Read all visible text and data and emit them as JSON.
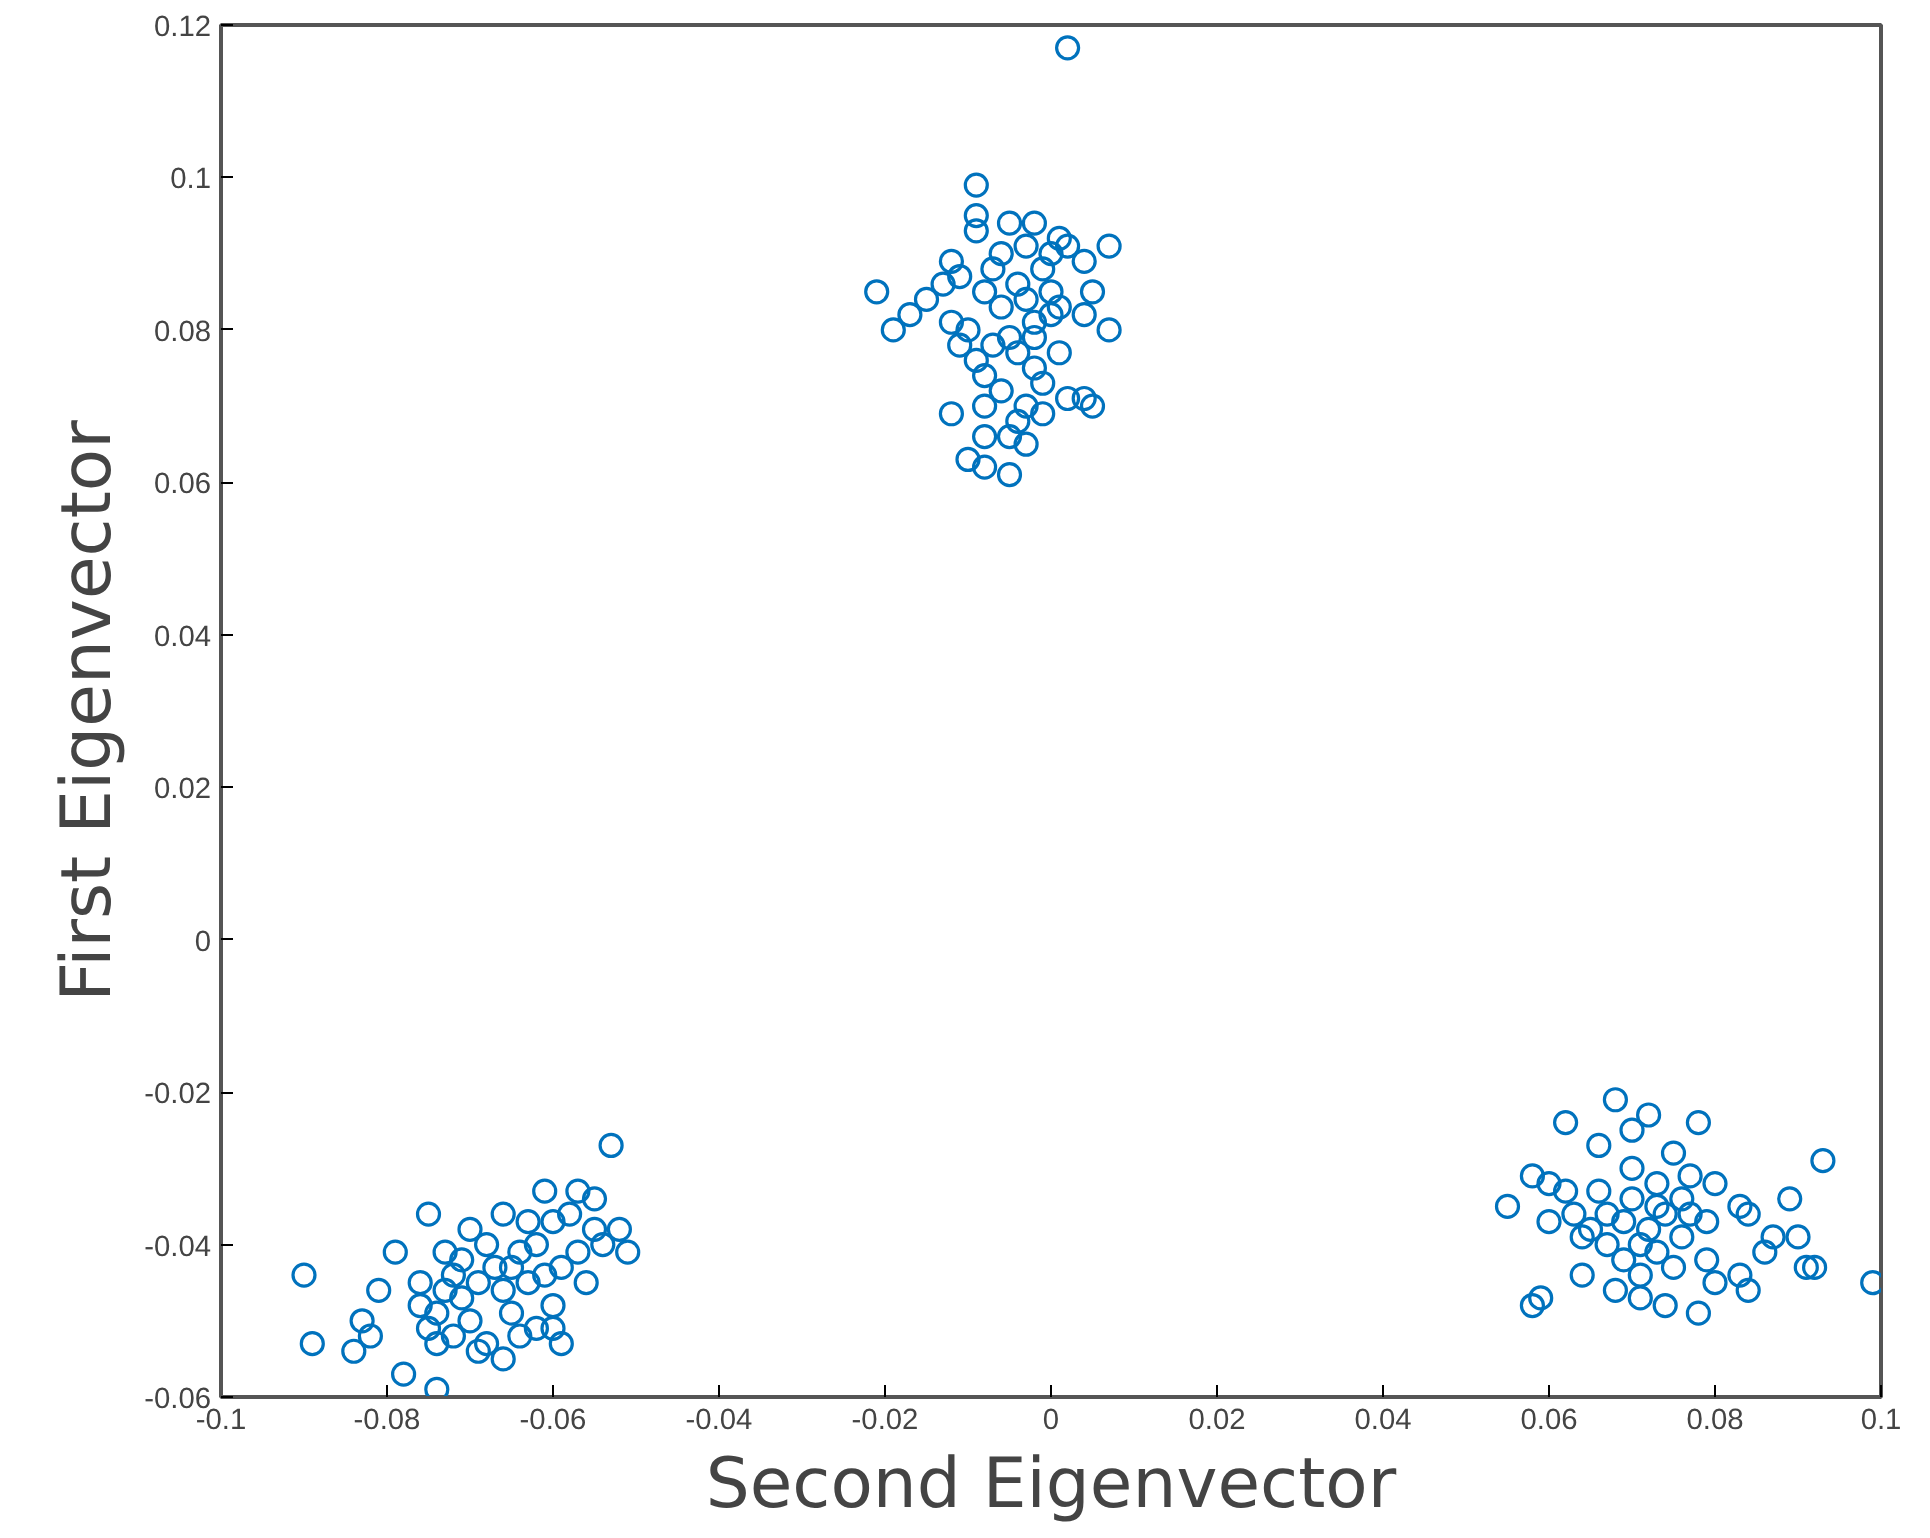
{
  "chart_data": {
    "type": "scatter",
    "xlabel": "Second Eigenvector",
    "ylabel": "First Eigenvector",
    "xlim": [
      -0.1,
      0.1
    ],
    "ylim": [
      -0.06,
      0.12
    ],
    "xticks": [
      -0.1,
      -0.08,
      -0.06,
      -0.04,
      -0.02,
      0,
      0.02,
      0.04,
      0.06,
      0.08,
      0.1
    ],
    "yticks": [
      -0.06,
      -0.04,
      -0.02,
      0,
      0.02,
      0.04,
      0.06,
      0.08,
      0.1,
      0.12
    ],
    "grid": false,
    "marker": "circle",
    "series": [
      {
        "color": "#0072bd",
        "x": [
          0.002,
          -0.009,
          -0.021,
          -0.019,
          -0.017,
          -0.015,
          -0.013,
          -0.012,
          -0.011,
          -0.009,
          -0.009,
          -0.005,
          -0.002,
          0.001,
          0.002,
          0.007,
          0.004,
          0.005,
          0.007,
          0.004,
          -0.007,
          -0.008,
          -0.006,
          -0.004,
          -0.003,
          -0.002,
          -0.001,
          0,
          0.001,
          -0.01,
          -0.011,
          -0.012,
          -0.009,
          -0.008,
          -0.007,
          -0.005,
          -0.004,
          -0.002,
          -0.001,
          0.001,
          0.002,
          0.004,
          0.005,
          -0.001,
          -0.003,
          -0.004,
          -0.005,
          -0.003,
          -0.008,
          -0.008,
          -0.012,
          -0.01,
          -0.008,
          -0.005,
          -0.006,
          -0.002,
          0,
          -0.006,
          -0.003,
          0,
          -0.09,
          -0.089,
          -0.084,
          -0.083,
          -0.082,
          -0.081,
          -0.079,
          -0.078,
          -0.074,
          -0.075,
          -0.076,
          -0.076,
          -0.075,
          -0.074,
          -0.073,
          -0.072,
          -0.071,
          -0.07,
          -0.069,
          -0.068,
          -0.067,
          -0.066,
          -0.065,
          -0.064,
          -0.063,
          -0.062,
          -0.061,
          -0.06,
          -0.06,
          -0.059,
          -0.061,
          -0.058,
          -0.057,
          -0.056,
          -0.055,
          -0.054,
          -0.053,
          -0.052,
          -0.051,
          -0.066,
          -0.07,
          -0.073,
          -0.068,
          -0.063,
          -0.059,
          -0.074,
          -0.071,
          -0.069,
          -0.064,
          -0.06,
          -0.055,
          -0.057,
          -0.072,
          -0.066,
          -0.062,
          -0.065,
          0.055,
          0.058,
          0.058,
          0.059,
          0.06,
          0.06,
          0.062,
          0.062,
          0.063,
          0.064,
          0.065,
          0.066,
          0.066,
          0.067,
          0.068,
          0.068,
          0.069,
          0.07,
          0.07,
          0.07,
          0.071,
          0.071,
          0.072,
          0.072,
          0.073,
          0.073,
          0.074,
          0.074,
          0.075,
          0.075,
          0.076,
          0.076,
          0.077,
          0.078,
          0.078,
          0.079,
          0.079,
          0.08,
          0.08,
          0.083,
          0.083,
          0.084,
          0.084,
          0.086,
          0.087,
          0.089,
          0.09,
          0.091,
          0.092,
          0.093,
          0.099,
          0.071,
          0.069,
          0.073,
          0.077,
          0.067,
          0.064
        ],
        "values": [
          0.117,
          0.099,
          0.085,
          0.08,
          0.082,
          0.084,
          0.086,
          0.089,
          0.087,
          0.095,
          0.093,
          0.094,
          0.094,
          0.092,
          0.091,
          0.091,
          0.089,
          0.085,
          0.08,
          0.082,
          0.088,
          0.085,
          0.083,
          0.086,
          0.084,
          0.081,
          0.088,
          0.085,
          0.083,
          0.08,
          0.078,
          0.081,
          0.076,
          0.074,
          0.078,
          0.079,
          0.077,
          0.075,
          0.073,
          0.077,
          0.071,
          0.071,
          0.07,
          0.069,
          0.07,
          0.068,
          0.066,
          0.065,
          0.07,
          0.066,
          0.069,
          0.063,
          0.062,
          0.061,
          0.072,
          0.079,
          0.082,
          0.09,
          0.091,
          0.09,
          -0.044,
          -0.053,
          -0.054,
          -0.05,
          -0.052,
          -0.046,
          -0.041,
          -0.057,
          -0.059,
          -0.036,
          -0.045,
          -0.048,
          -0.051,
          -0.053,
          -0.041,
          -0.044,
          -0.047,
          -0.05,
          -0.054,
          -0.04,
          -0.043,
          -0.046,
          -0.049,
          -0.052,
          -0.037,
          -0.04,
          -0.044,
          -0.048,
          -0.051,
          -0.053,
          -0.033,
          -0.036,
          -0.041,
          -0.045,
          -0.038,
          -0.04,
          -0.027,
          -0.038,
          -0.041,
          -0.036,
          -0.038,
          -0.046,
          -0.053,
          -0.045,
          -0.043,
          -0.049,
          -0.042,
          -0.045,
          -0.041,
          -0.037,
          -0.034,
          -0.033,
          -0.052,
          -0.055,
          -0.051,
          -0.043,
          -0.035,
          -0.031,
          -0.048,
          -0.047,
          -0.037,
          -0.032,
          -0.033,
          -0.024,
          -0.036,
          -0.044,
          -0.038,
          -0.033,
          -0.027,
          -0.04,
          -0.021,
          -0.046,
          -0.037,
          -0.025,
          -0.03,
          -0.034,
          -0.044,
          -0.047,
          -0.038,
          -0.023,
          -0.041,
          -0.032,
          -0.036,
          -0.048,
          -0.028,
          -0.043,
          -0.034,
          -0.039,
          -0.031,
          -0.024,
          -0.049,
          -0.037,
          -0.042,
          -0.045,
          -0.032,
          -0.035,
          -0.044,
          -0.046,
          -0.036,
          -0.041,
          -0.039,
          -0.034,
          -0.039,
          -0.043,
          -0.043,
          -0.029,
          -0.045,
          -0.04,
          -0.042,
          -0.035,
          -0.036,
          -0.036,
          -0.039
        ]
      }
    ]
  }
}
